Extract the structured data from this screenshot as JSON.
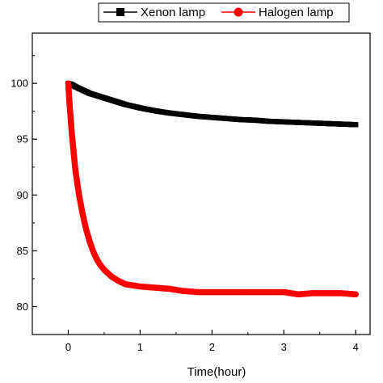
{
  "chart_data": {
    "type": "scatter",
    "title": "",
    "xlabel": "Time(hour)",
    "ylabel": "",
    "xlim": [
      -0.5,
      4.2
    ],
    "ylim": [
      77.5,
      104.5
    ],
    "x_ticks": [
      "0",
      "1",
      "2",
      "3",
      "4"
    ],
    "y_ticks": [
      "80",
      "85",
      "90",
      "95",
      "100"
    ],
    "legend_position": "top",
    "grid": false,
    "series": [
      {
        "name": "Xenon lamp",
        "color": "#000000",
        "marker": "square",
        "x": [
          0,
          0.05,
          0.1,
          0.2,
          0.3,
          0.4,
          0.5,
          0.6,
          0.7,
          0.8,
          0.9,
          1.0,
          1.2,
          1.4,
          1.6,
          1.8,
          2.0,
          2.2,
          2.4,
          2.6,
          2.8,
          3.0,
          3.2,
          3.4,
          3.6,
          3.8,
          4.0
        ],
        "y": [
          100,
          99.9,
          99.7,
          99.4,
          99.1,
          98.9,
          98.7,
          98.5,
          98.3,
          98.1,
          97.95,
          97.8,
          97.55,
          97.35,
          97.2,
          97.05,
          96.95,
          96.85,
          96.75,
          96.7,
          96.6,
          96.55,
          96.5,
          96.45,
          96.4,
          96.35,
          96.3
        ]
      },
      {
        "name": "Halogen lamp",
        "color": "#ff0000",
        "marker": "circle",
        "x": [
          0,
          0.02,
          0.05,
          0.08,
          0.1,
          0.15,
          0.2,
          0.25,
          0.3,
          0.35,
          0.4,
          0.45,
          0.5,
          0.6,
          0.7,
          0.8,
          0.9,
          1.0,
          1.2,
          1.4,
          1.6,
          1.8,
          2.0,
          2.2,
          2.4,
          2.6,
          2.8,
          3.0,
          3.2,
          3.4,
          3.6,
          3.8,
          4.0
        ],
        "y": [
          100,
          98,
          95.5,
          93.5,
          92.2,
          90.0,
          88.3,
          86.9,
          85.8,
          84.9,
          84.2,
          83.7,
          83.3,
          82.7,
          82.3,
          82.0,
          81.9,
          81.8,
          81.7,
          81.6,
          81.4,
          81.3,
          81.3,
          81.3,
          81.3,
          81.3,
          81.3,
          81.3,
          81.1,
          81.2,
          81.2,
          81.2,
          81.1
        ]
      }
    ]
  }
}
